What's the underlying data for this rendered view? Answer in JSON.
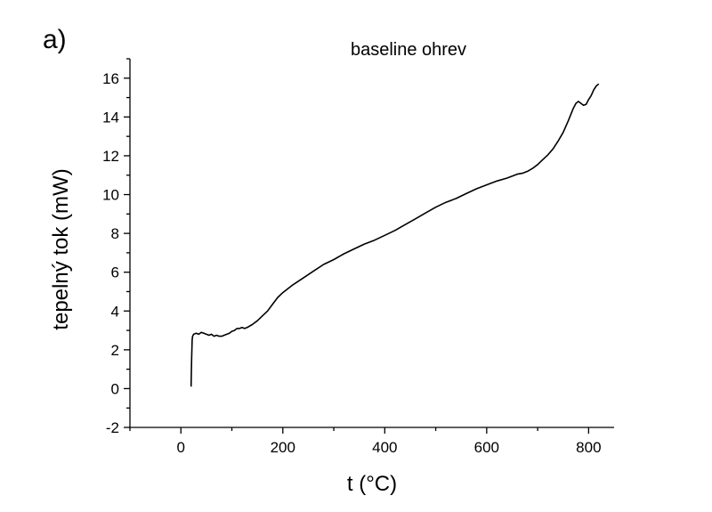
{
  "panel_label": "a)",
  "chart_data": {
    "type": "line",
    "title": "baseline ohrev",
    "xlabel": "t (°C)",
    "ylabel": "tepelný tok (mW)",
    "xlim": [
      -100,
      850
    ],
    "ylim": [
      -2,
      17
    ],
    "xticks": [
      0,
      200,
      400,
      600,
      800
    ],
    "xtick_labels": [
      "0",
      "200",
      "400",
      "600",
      "800"
    ],
    "yticks": [
      -2,
      0,
      2,
      4,
      6,
      8,
      10,
      12,
      14,
      16
    ],
    "ytick_labels": [
      "-2",
      "0",
      "2",
      "4",
      "6",
      "8",
      "10",
      "12",
      "14",
      "16"
    ],
    "grid": false,
    "legend": "none",
    "line_color": "#000000",
    "series": [
      {
        "x": [
          20,
          21,
          22,
          23,
          25,
          30,
          35,
          40,
          45,
          50,
          55,
          60,
          65,
          70,
          75,
          80,
          85,
          90,
          95,
          100,
          105,
          110,
          115,
          120,
          125,
          130,
          140,
          150,
          160,
          170,
          180,
          190,
          200,
          220,
          240,
          260,
          280,
          300,
          320,
          340,
          360,
          380,
          400,
          420,
          440,
          460,
          480,
          500,
          520,
          540,
          560,
          580,
          600,
          620,
          640,
          660,
          670,
          680,
          690,
          700,
          710,
          720,
          730,
          740,
          750,
          760,
          770,
          775,
          780,
          785,
          790,
          795,
          800,
          805,
          810,
          815,
          820
        ],
        "y": [
          0.1,
          1.5,
          2.5,
          2.7,
          2.8,
          2.85,
          2.8,
          2.9,
          2.85,
          2.8,
          2.75,
          2.8,
          2.7,
          2.75,
          2.7,
          2.7,
          2.75,
          2.8,
          2.85,
          2.95,
          3.0,
          3.1,
          3.1,
          3.15,
          3.1,
          3.15,
          3.3,
          3.5,
          3.75,
          4.0,
          4.35,
          4.7,
          4.95,
          5.35,
          5.7,
          6.05,
          6.4,
          6.65,
          6.95,
          7.2,
          7.45,
          7.65,
          7.9,
          8.15,
          8.45,
          8.75,
          9.05,
          9.35,
          9.6,
          9.8,
          10.05,
          10.3,
          10.5,
          10.7,
          10.85,
          11.05,
          11.1,
          11.2,
          11.35,
          11.55,
          11.8,
          12.05,
          12.35,
          12.75,
          13.2,
          13.8,
          14.45,
          14.7,
          14.8,
          14.7,
          14.6,
          14.65,
          14.9,
          15.1,
          15.4,
          15.6,
          15.7
        ]
      }
    ]
  }
}
